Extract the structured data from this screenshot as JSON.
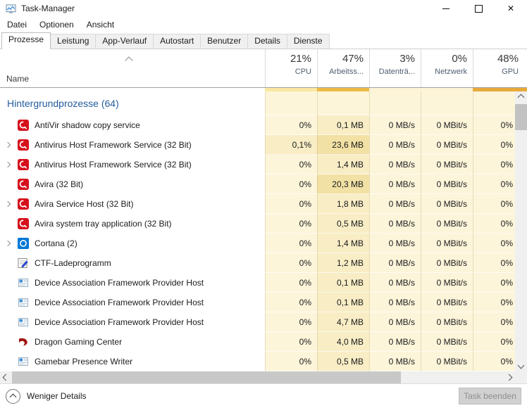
{
  "window": {
    "title": "Task-Manager",
    "app_icon": "task-manager-app-icon"
  },
  "menu": {
    "items": [
      "Datei",
      "Optionen",
      "Ansicht"
    ]
  },
  "tabs": {
    "active": "Prozesse",
    "items": [
      "Prozesse",
      "Leistung",
      "App-Verlauf",
      "Autostart",
      "Benutzer",
      "Details",
      "Dienste"
    ]
  },
  "table": {
    "name_header": "Name",
    "sort_indicator": "chevron-up",
    "columns": [
      {
        "usage": "21%",
        "label": "CPU",
        "heat_color": "#fbe7a0"
      },
      {
        "usage": "47%",
        "label": "Arbeitss...",
        "heat_color": "#edbb45"
      },
      {
        "usage": "3%",
        "label": "Datenträ...",
        "heat_color": "#fdf3d6"
      },
      {
        "usage": "0%",
        "label": "Netzwerk",
        "heat_color": "#fdf3d6"
      },
      {
        "usage": "48%",
        "label": "GPU",
        "heat_color": "#e8aa3a"
      }
    ],
    "group": {
      "label": "Hintergrundprozesse (64)"
    },
    "rows": [
      {
        "name": "AntiVir shadow copy service",
        "icon": "avira",
        "expandable": false,
        "values": [
          "0%",
          "0,1 MB",
          "0 MB/s",
          "0 MBit/s",
          "0%"
        ]
      },
      {
        "name": "Antivirus Host Framework Service (32 Bit)",
        "icon": "avira",
        "expandable": true,
        "values": [
          "0,1%",
          "23,6 MB",
          "0 MB/s",
          "0 MBit/s",
          "0%"
        ]
      },
      {
        "name": "Antivirus Host Framework Service (32 Bit)",
        "icon": "avira",
        "expandable": true,
        "values": [
          "0%",
          "1,4 MB",
          "0 MB/s",
          "0 MBit/s",
          "0%"
        ]
      },
      {
        "name": "Avira (32 Bit)",
        "icon": "avira",
        "expandable": false,
        "values": [
          "0%",
          "20,3 MB",
          "0 MB/s",
          "0 MBit/s",
          "0%"
        ]
      },
      {
        "name": "Avira Service Host (32 Bit)",
        "icon": "avira",
        "expandable": true,
        "values": [
          "0%",
          "1,8 MB",
          "0 MB/s",
          "0 MBit/s",
          "0%"
        ]
      },
      {
        "name": "Avira system tray application (32 Bit)",
        "icon": "avira",
        "expandable": false,
        "values": [
          "0%",
          "0,5 MB",
          "0 MB/s",
          "0 MBit/s",
          "0%"
        ]
      },
      {
        "name": "Cortana (2)",
        "icon": "cortana",
        "expandable": true,
        "values": [
          "0%",
          "1,4 MB",
          "0 MB/s",
          "0 MBit/s",
          "0%"
        ]
      },
      {
        "name": "CTF-Ladeprogramm",
        "icon": "ctf",
        "expandable": false,
        "values": [
          "0%",
          "1,2 MB",
          "0 MB/s",
          "0 MBit/s",
          "0%"
        ]
      },
      {
        "name": "Device Association Framework Provider Host",
        "icon": "window",
        "expandable": false,
        "values": [
          "0%",
          "0,1 MB",
          "0 MB/s",
          "0 MBit/s",
          "0%"
        ]
      },
      {
        "name": "Device Association Framework Provider Host",
        "icon": "window",
        "expandable": false,
        "values": [
          "0%",
          "0,1 MB",
          "0 MB/s",
          "0 MBit/s",
          "0%"
        ]
      },
      {
        "name": "Device Association Framework Provider Host",
        "icon": "window",
        "expandable": false,
        "values": [
          "0%",
          "4,7 MB",
          "0 MB/s",
          "0 MBit/s",
          "0%"
        ]
      },
      {
        "name": "Dragon Gaming Center",
        "icon": "dragon",
        "expandable": false,
        "values": [
          "0%",
          "4,0 MB",
          "0 MB/s",
          "0 MBit/s",
          "0%"
        ]
      },
      {
        "name": "Gamebar Presence Writer",
        "icon": "window",
        "expandable": false,
        "values": [
          "0%",
          "0,5 MB",
          "0 MB/s",
          "0 MBit/s",
          "0%"
        ]
      }
    ]
  },
  "footer": {
    "toggle_label": "Weniger Details",
    "end_task_label": "Task beenden",
    "end_task_enabled": false
  },
  "colors": {
    "heat_base": "#fdf5da",
    "heat_warm": "#f8edc5",
    "heat_hot": "#f2e1a4",
    "group_text_blue": "#245d9b",
    "avira_red": "#d6111c",
    "cortana_blue": "#0078d7"
  }
}
